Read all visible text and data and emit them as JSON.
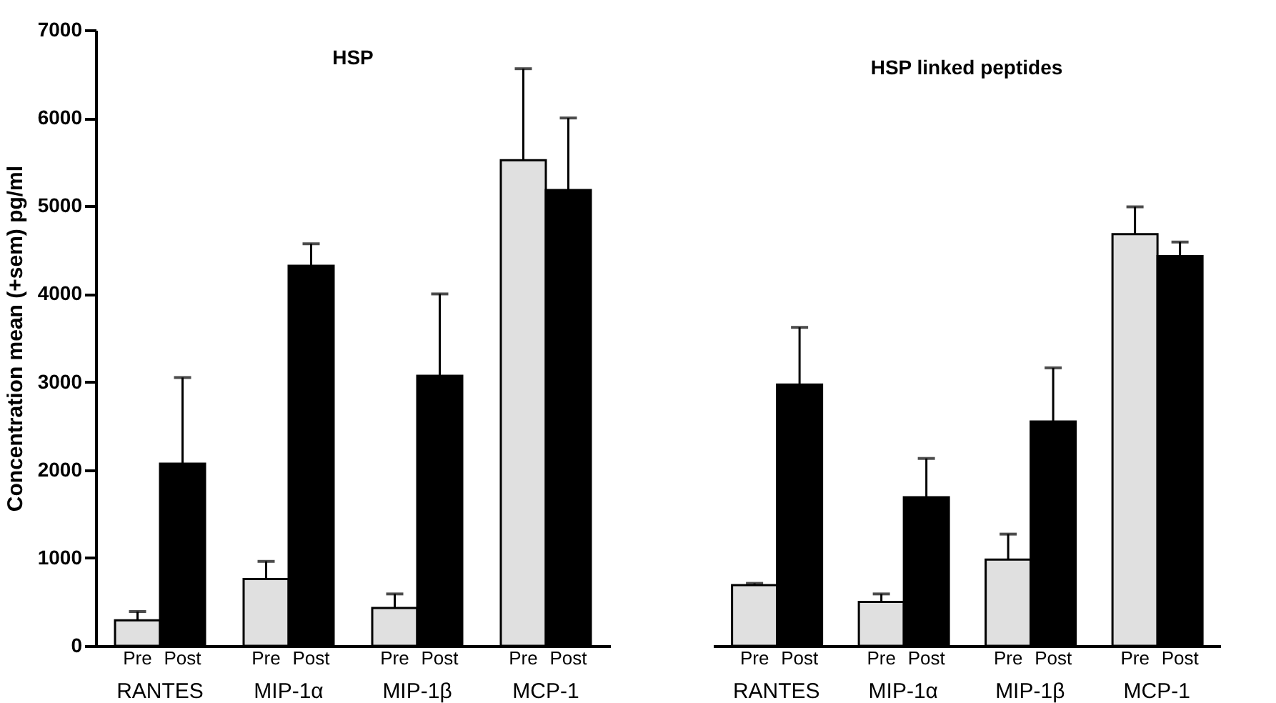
{
  "chart_data": [
    {
      "type": "bar",
      "title": "HSP",
      "ylabel": "Concentration mean (+sem) pg/ml",
      "categories": [
        "RANTES",
        "MIP-1α",
        "MIP-1β",
        "MCP-1"
      ],
      "series": [
        {
          "name": "Pre",
          "color": "#e0e0e0",
          "values": [
            290,
            760,
            430,
            5520
          ],
          "errors": [
            [
              290,
              390
            ],
            [
              760,
              960
            ],
            [
              430,
              590
            ],
            [
              5520,
              6560
            ]
          ]
        },
        {
          "name": "Post",
          "color": "#000000",
          "values": [
            2070,
            4320,
            3070,
            5180
          ],
          "errors": [
            [
              2070,
              3050
            ],
            [
              4320,
              4570
            ],
            [
              3070,
              4000
            ],
            [
              5180,
              6000
            ]
          ]
        }
      ],
      "ylim": [
        0,
        7000
      ],
      "yticks": [
        0,
        1000,
        2000,
        3000,
        4000,
        5000,
        6000,
        7000
      ],
      "grid": false,
      "legend": false
    },
    {
      "type": "bar",
      "title": "HSP linked peptides",
      "categories": [
        "RANTES",
        "MIP-1α",
        "MIP-1β",
        "MCP-1"
      ],
      "series": [
        {
          "name": "Pre",
          "color": "#e0e0e0",
          "values": [
            690,
            500,
            980,
            4680
          ],
          "errors": [
            [
              690,
              710
            ],
            [
              500,
              590
            ],
            [
              980,
              1270
            ],
            [
              4680,
              4990
            ]
          ]
        },
        {
          "name": "Post",
          "color": "#000000",
          "values": [
            2970,
            1690,
            2550,
            4430
          ],
          "errors": [
            [
              2970,
              3620
            ],
            [
              1690,
              2130
            ],
            [
              2550,
              3160
            ],
            [
              4430,
              4590
            ]
          ]
        }
      ],
      "ylim": [
        0,
        7000
      ],
      "grid": false,
      "legend": false,
      "tick_labels": "x"
    }
  ]
}
